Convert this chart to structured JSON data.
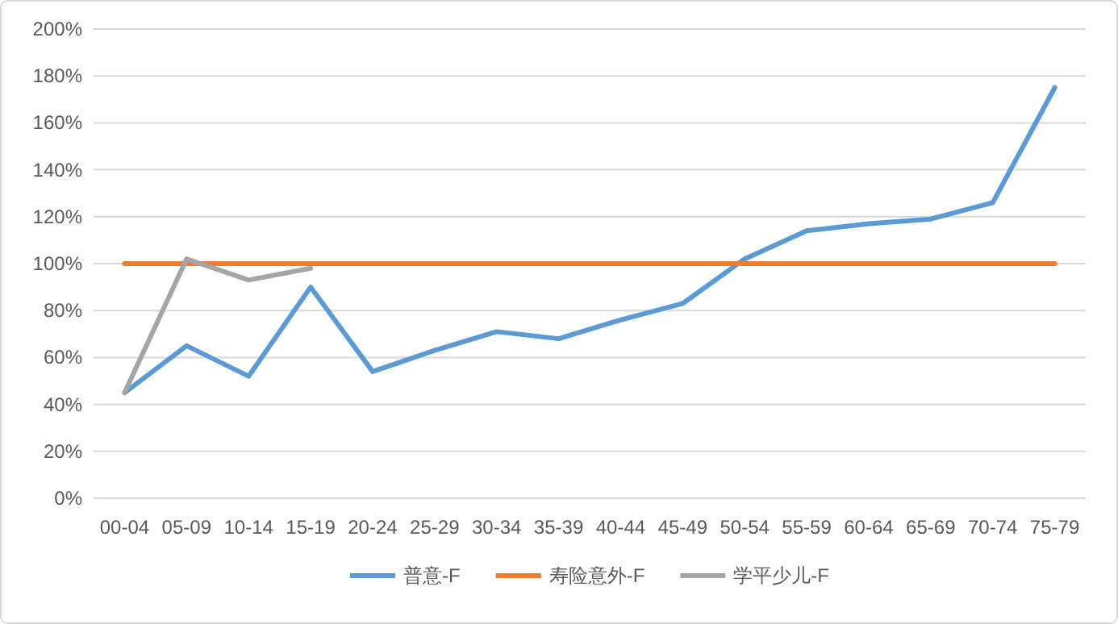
{
  "chart_data": {
    "type": "line",
    "categories": [
      "00-04",
      "05-09",
      "10-14",
      "15-19",
      "20-24",
      "25-29",
      "30-34",
      "35-39",
      "40-44",
      "45-49",
      "50-54",
      "55-59",
      "60-64",
      "65-69",
      "70-74",
      "75-79"
    ],
    "series": [
      {
        "name": "普意-F",
        "color": "#5b9bd5",
        "values": [
          45,
          65,
          52,
          90,
          54,
          63,
          71,
          68,
          76,
          83,
          102,
          114,
          117,
          119,
          126,
          175
        ]
      },
      {
        "name": "寿险意外-F",
        "color": "#ed7d31",
        "values": [
          100,
          100,
          100,
          100,
          100,
          100,
          100,
          100,
          100,
          100,
          100,
          100,
          100,
          100,
          100,
          100
        ]
      },
      {
        "name": "学平少儿-F",
        "color": "#a5a5a5",
        "values": [
          45,
          102,
          93,
          98,
          null,
          null,
          null,
          null,
          null,
          null,
          null,
          null,
          null,
          null,
          null,
          null
        ]
      }
    ],
    "ylim": [
      0,
      200
    ],
    "yticks": [
      {
        "value": 0,
        "label": "0%"
      },
      {
        "value": 20,
        "label": "20%"
      },
      {
        "value": 40,
        "label": "40%"
      },
      {
        "value": 60,
        "label": "60%"
      },
      {
        "value": 80,
        "label": "80%"
      },
      {
        "value": 100,
        "label": "100%"
      },
      {
        "value": 120,
        "label": "120%"
      },
      {
        "value": 140,
        "label": "140%"
      },
      {
        "value": 160,
        "label": "160%"
      },
      {
        "value": 180,
        "label": "180%"
      },
      {
        "value": 200,
        "label": "200%"
      }
    ],
    "grid": "y",
    "legend": "bottom",
    "marker": "none",
    "line_style": "solid"
  }
}
